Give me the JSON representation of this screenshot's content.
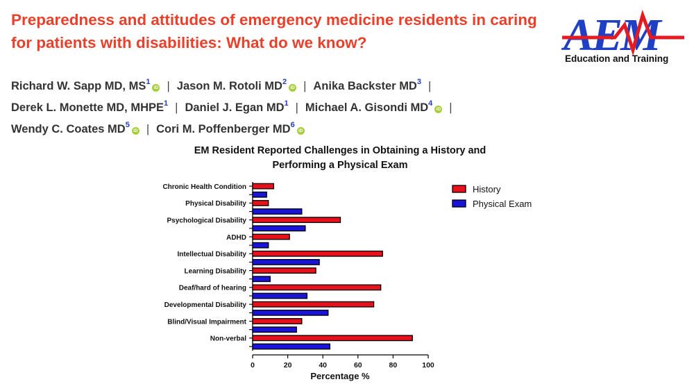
{
  "paper": {
    "title": "Preparedness and attitudes of emergency medicine residents in caring for patients with disabilities: What do we know?",
    "journal_logo": "AEM",
    "journal_subtitle": "Education and Training",
    "separator": "|",
    "authors": [
      {
        "name": "Richard W. Sapp MD, MS",
        "aff": "1",
        "orcid": true,
        "line": 1
      },
      {
        "name": "Jason M. Rotoli MD",
        "aff": "2",
        "orcid": true,
        "line": 1
      },
      {
        "name": "Anika Backster MD",
        "aff": "3",
        "orcid": false,
        "line": 1
      },
      {
        "name": "Derek L. Monette MD, MHPE",
        "aff": "1",
        "orcid": false,
        "line": 2
      },
      {
        "name": "Daniel J. Egan MD",
        "aff": "1",
        "orcid": false,
        "line": 2
      },
      {
        "name": "Michael A. Gisondi MD",
        "aff": "4",
        "orcid": true,
        "line": 2
      },
      {
        "name": "Wendy C. Coates MD",
        "aff": "5",
        "orcid": true,
        "line": 3
      },
      {
        "name": "Cori M. Poffenberger MD",
        "aff": "6",
        "orcid": true,
        "line": 3
      }
    ],
    "orcid_label": "iD"
  },
  "chart_data": {
    "type": "bar",
    "orientation": "horizontal",
    "title": "EM Resident Reported Challenges in Obtaining a History and Performing a Physical Exam",
    "xlabel": "Percentage %",
    "ylabel": "",
    "xlim": [
      0,
      100
    ],
    "xticks": [
      "0",
      "20",
      "40",
      "60",
      "80",
      "100"
    ],
    "categories": [
      "Chronic Health Condition",
      "Physical Disability",
      "Psychological Disability",
      "ADHD",
      "Intellectual Disability",
      "Learning Disability",
      "Deaf/hard of hearing",
      "Developmental Disability",
      "Blind/Visual Impairment",
      "Non-verbal"
    ],
    "series": [
      {
        "name": "History",
        "color": "#e8101a",
        "values": [
          12,
          9,
          50,
          21,
          74,
          36,
          73,
          69,
          28,
          91
        ]
      },
      {
        "name": "Physical Exam",
        "color": "#1a14d8",
        "values": [
          8,
          28,
          30,
          9,
          38,
          10,
          31,
          43,
          25,
          44
        ]
      }
    ],
    "legend_position": "top-right",
    "grid": false
  }
}
